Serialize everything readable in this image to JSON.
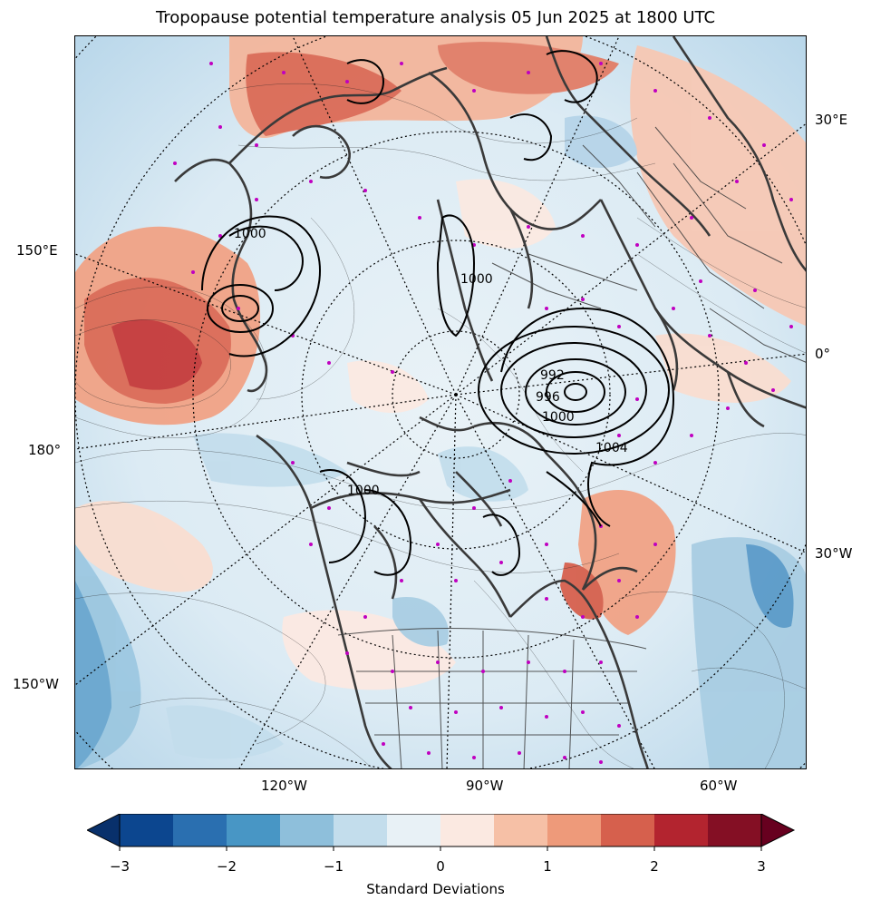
{
  "title": "Tropopause potential temperature analysis 05 Jun 2025 at 1800 UTC",
  "map": {
    "projection": "north-polar-stereographic",
    "left_labels": [
      "150°E",
      "180°",
      "150°W"
    ],
    "right_labels": [
      "30°E",
      "0°",
      "30°W"
    ],
    "bottom_labels": [
      "120°W",
      "90°W",
      "60°W"
    ],
    "isobar_labels": [
      "1000",
      "1004",
      "992",
      "996",
      "1000",
      "1000",
      "1000"
    ],
    "colors": {
      "coastline": "#3a3a3a",
      "isobar": "#000000",
      "station_marker": "#c000c0",
      "graticule": "#000000"
    }
  },
  "colorbar": {
    "label": "Standard Deviations",
    "ticks": [
      "−3",
      "−2",
      "−1",
      "0",
      "1",
      "2",
      "3"
    ],
    "colors": [
      "#08306b",
      "#0c468f",
      "#2a6fb0",
      "#4896c5",
      "#8ebfdb",
      "#c3ddec",
      "#e8f1f6",
      "#fbe9e1",
      "#f6c0a6",
      "#ee9a7a",
      "#d6604d",
      "#b3242f",
      "#840f24",
      "#67001f"
    ]
  }
}
